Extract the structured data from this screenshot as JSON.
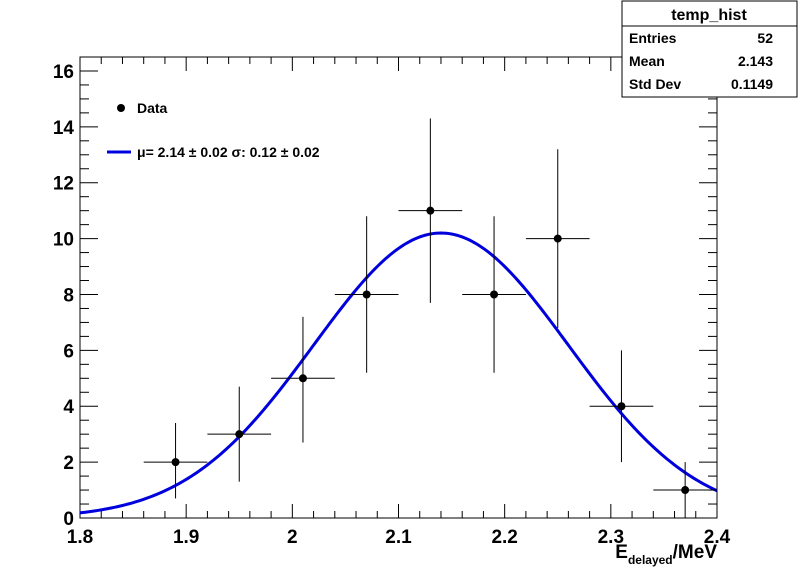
{
  "chart_data": {
    "type": "scatter",
    "title": "",
    "xlabel_main": "E",
    "xlabel_sub": "delayed",
    "xlabel_unit": "/MeV",
    "ylabel": "",
    "xlim": [
      1.8,
      2.4
    ],
    "ylim": [
      0,
      16.5
    ],
    "xticks": [
      "1.8",
      "1.9",
      "2",
      "2.1",
      "2.2",
      "2.3",
      "2.4"
    ],
    "yticks": [
      "0",
      "2",
      "4",
      "6",
      "8",
      "10",
      "12",
      "14",
      "16"
    ],
    "grid": false,
    "bin_width": 0.06,
    "points": [
      {
        "x": 1.89,
        "y": 2,
        "yerr_low": 1.3,
        "yerr_high": 1.4
      },
      {
        "x": 1.95,
        "y": 3,
        "yerr_low": 1.7,
        "yerr_high": 1.7
      },
      {
        "x": 2.01,
        "y": 5,
        "yerr_low": 2.3,
        "yerr_high": 2.2
      },
      {
        "x": 2.07,
        "y": 8,
        "yerr_low": 2.8,
        "yerr_high": 2.8
      },
      {
        "x": 2.13,
        "y": 11,
        "yerr_low": 3.3,
        "yerr_high": 3.3
      },
      {
        "x": 2.19,
        "y": 8,
        "yerr_low": 2.8,
        "yerr_high": 2.8
      },
      {
        "x": 2.25,
        "y": 10,
        "yerr_low": 3.2,
        "yerr_high": 3.2
      },
      {
        "x": 2.31,
        "y": 4,
        "yerr_low": 2.0,
        "yerr_high": 2.0
      },
      {
        "x": 2.37,
        "y": 1,
        "yerr_low": 1.0,
        "yerr_high": 1.0
      }
    ],
    "fit": {
      "type": "gaussian",
      "amplitude": 10.2,
      "mean": 2.14,
      "sigma": 0.12,
      "color": "#0000dd"
    },
    "legend": {
      "position": "top-left",
      "entries": [
        {
          "label": "Data",
          "kind": "marker",
          "color": "#000000"
        },
        {
          "label_mu": "μ",
          "label_eq": "= 2.14 ± 0.02 ",
          "label_sigma": "σ",
          "label_rest": ": 0.12 ± 0.02",
          "kind": "line",
          "color": "#0000dd"
        }
      ]
    },
    "stats_box": {
      "title": "temp_hist",
      "rows": [
        {
          "name": "Entries",
          "value": "52"
        },
        {
          "name": "Mean",
          "value": "2.143"
        },
        {
          "name": "Std Dev",
          "value": "0.1149"
        }
      ]
    }
  }
}
